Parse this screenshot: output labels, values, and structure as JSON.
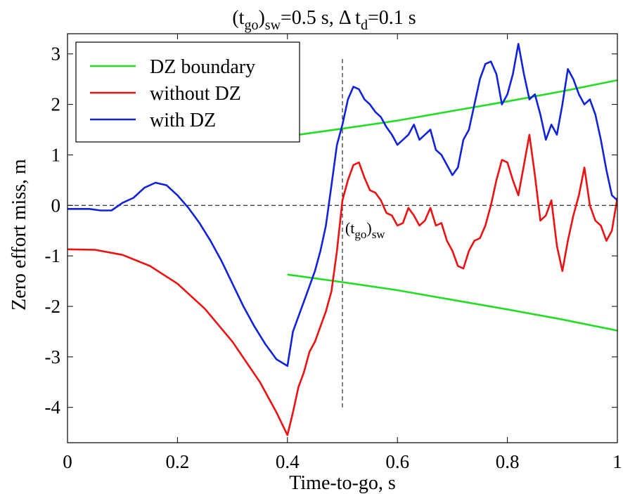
{
  "chart_data": {
    "type": "line",
    "title": {
      "parts": [
        {
          "text": "(t",
          "sub": false
        },
        {
          "text": "go",
          "sub": true
        },
        {
          "text": ")",
          "sub": false
        },
        {
          "text": "sw",
          "sub": true
        },
        {
          "text": "=0.5 s, Δ t",
          "sub": false
        },
        {
          "text": "d",
          "sub": true
        },
        {
          "text": "=0.1 s",
          "sub": false
        }
      ]
    },
    "xlabel": "Time-to-go, s",
    "ylabel": "Zero effort miss, m",
    "xlim": [
      0,
      1
    ],
    "ylim": [
      -4.7,
      3.4
    ],
    "xticks": [
      0,
      0.2,
      0.4,
      0.6,
      0.8,
      1
    ],
    "xtick_labels": [
      "0",
      "0.2",
      "0.4",
      "0.6",
      "0.8",
      "1"
    ],
    "yticks": [
      -4,
      -3,
      -2,
      -1,
      0,
      1,
      2,
      3
    ],
    "ytick_labels": [
      "-4",
      "-3",
      "-2",
      "-1",
      "0",
      "1",
      "2",
      "3"
    ],
    "grid": false,
    "legend_position": "top-left",
    "reference_lines": {
      "horizontal_y": 0,
      "vertical_x": 0.5,
      "vertical_ylim": [
        -4,
        2.9
      ]
    },
    "annotation": {
      "x": 0.505,
      "y": -0.55,
      "parts": [
        {
          "text": "(t",
          "sub": false
        },
        {
          "text": "go",
          "sub": true
        },
        {
          "text": ")",
          "sub": false
        },
        {
          "text": "sw",
          "sub": true
        }
      ]
    },
    "series": [
      {
        "name": "DZ boundary",
        "color": "#22dd22",
        "segments": [
          {
            "x": [
              0.4,
              0.5,
              0.6,
              0.7,
              0.8,
              0.9,
              1.0
            ],
            "y": [
              1.37,
              1.52,
              1.68,
              1.87,
              2.06,
              2.26,
              2.48
            ]
          },
          {
            "x": [
              0.4,
              0.5,
              0.6,
              0.7,
              0.8,
              0.9,
              1.0
            ],
            "y": [
              -1.37,
              -1.52,
              -1.68,
              -1.87,
              -2.06,
              -2.26,
              -2.48
            ]
          }
        ]
      },
      {
        "name": "without DZ",
        "color": "#ee1111",
        "segments": [
          {
            "x": [
              0,
              0.05,
              0.1,
              0.15,
              0.2,
              0.25,
              0.3,
              0.35,
              0.38,
              0.4,
              0.41,
              0.42,
              0.43,
              0.44,
              0.45,
              0.46,
              0.47,
              0.48,
              0.49,
              0.5,
              0.51,
              0.52,
              0.53,
              0.54,
              0.55,
              0.56,
              0.57,
              0.58,
              0.59,
              0.6,
              0.61,
              0.62,
              0.63,
              0.64,
              0.65,
              0.66,
              0.67,
              0.68,
              0.69,
              0.7,
              0.71,
              0.72,
              0.73,
              0.74,
              0.75,
              0.76,
              0.77,
              0.78,
              0.79,
              0.8,
              0.81,
              0.82,
              0.83,
              0.84,
              0.85,
              0.86,
              0.87,
              0.88,
              0.89,
              0.9,
              0.91,
              0.92,
              0.93,
              0.94,
              0.95,
              0.96,
              0.97,
              0.98,
              0.99,
              1.0
            ],
            "y": [
              -0.87,
              -0.88,
              -0.98,
              -1.2,
              -1.55,
              -2.05,
              -2.7,
              -3.5,
              -4.1,
              -4.55,
              -4.1,
              -3.6,
              -3.3,
              -2.9,
              -2.7,
              -2.4,
              -2.1,
              -1.7,
              -0.9,
              0.1,
              0.5,
              0.8,
              0.85,
              0.55,
              0.3,
              0.25,
              0.1,
              -0.15,
              -0.2,
              -0.4,
              -0.35,
              -0.05,
              -0.2,
              -0.4,
              -0.3,
              -0.05,
              -0.4,
              -0.35,
              -0.7,
              -0.9,
              -1.2,
              -1.25,
              -0.9,
              -0.7,
              -0.65,
              -0.4,
              0.0,
              0.5,
              0.9,
              0.85,
              0.5,
              0.2,
              0.8,
              1.4,
              0.6,
              -0.3,
              -0.2,
              0.1,
              -0.8,
              -1.3,
              -0.7,
              -0.2,
              0.2,
              0.75,
              0.0,
              -0.3,
              -0.4,
              -0.7,
              -0.5,
              0.15
            ]
          }
        ]
      },
      {
        "name": "with DZ",
        "color": "#1122dd",
        "segments": [
          {
            "x": [
              0,
              0.02,
              0.04,
              0.06,
              0.08,
              0.1,
              0.12,
              0.14,
              0.16,
              0.18,
              0.2,
              0.22,
              0.24,
              0.26,
              0.28,
              0.3,
              0.32,
              0.34,
              0.36,
              0.38,
              0.4,
              0.41,
              0.42,
              0.43,
              0.44,
              0.45,
              0.46,
              0.47,
              0.48,
              0.49,
              0.5,
              0.51,
              0.52,
              0.53,
              0.54,
              0.55,
              0.56,
              0.57,
              0.58,
              0.59,
              0.6,
              0.61,
              0.62,
              0.63,
              0.64,
              0.65,
              0.66,
              0.67,
              0.68,
              0.69,
              0.7,
              0.71,
              0.72,
              0.73,
              0.74,
              0.75,
              0.76,
              0.77,
              0.78,
              0.79,
              0.8,
              0.81,
              0.82,
              0.83,
              0.84,
              0.85,
              0.86,
              0.87,
              0.88,
              0.89,
              0.9,
              0.91,
              0.92,
              0.93,
              0.94,
              0.95,
              0.96,
              0.97,
              0.98,
              0.99,
              1.0
            ],
            "y": [
              -0.07,
              -0.07,
              -0.07,
              -0.1,
              -0.1,
              0.05,
              0.15,
              0.35,
              0.45,
              0.4,
              0.2,
              -0.05,
              -0.35,
              -0.7,
              -1.1,
              -1.55,
              -2.0,
              -2.4,
              -2.75,
              -3.05,
              -3.18,
              -2.5,
              -2.2,
              -1.9,
              -1.6,
              -1.3,
              -0.9,
              -0.4,
              0.4,
              1.2,
              1.6,
              2.1,
              2.35,
              2.3,
              2.1,
              2.0,
              1.85,
              1.75,
              1.55,
              1.4,
              1.2,
              1.3,
              1.4,
              1.6,
              1.3,
              1.4,
              1.5,
              1.1,
              1.0,
              0.8,
              0.6,
              0.75,
              1.3,
              1.5,
              2.0,
              2.5,
              2.8,
              2.85,
              2.6,
              2.0,
              2.2,
              2.6,
              3.2,
              2.6,
              2.1,
              2.2,
              1.8,
              1.3,
              1.6,
              1.4,
              2.0,
              2.7,
              2.5,
              2.2,
              2.0,
              2.1,
              1.8,
              1.3,
              0.7,
              0.2,
              0.1
            ]
          }
        ]
      }
    ]
  }
}
